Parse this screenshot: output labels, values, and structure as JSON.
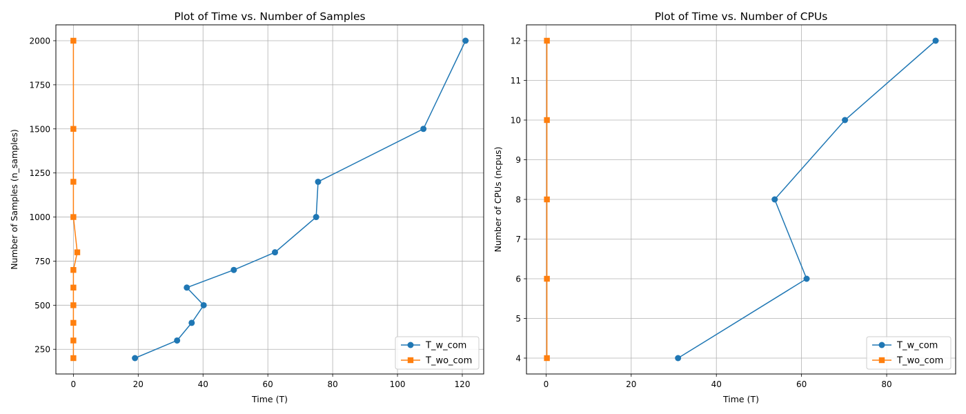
{
  "chart_data": [
    {
      "type": "line",
      "title": "Plot of Time vs. Number of Samples",
      "xlabel": "Time (T)",
      "ylabel": "Number of Samples (n_samples)",
      "xlim": [
        -5.4,
        126.6
      ],
      "ylim": [
        110,
        2090
      ],
      "xticks": [
        0,
        20,
        40,
        60,
        80,
        100,
        120
      ],
      "yticks": [
        250,
        500,
        750,
        1000,
        1250,
        1500,
        1750,
        2000
      ],
      "grid": true,
      "legend_position": "lower-right",
      "series": [
        {
          "name": "T_w_com",
          "color": "#1f77b4",
          "marker": "circle",
          "points": [
            [
              19,
              200
            ],
            [
              32,
              300
            ],
            [
              36.5,
              400
            ],
            [
              40.2,
              500
            ],
            [
              35,
              600
            ],
            [
              49.5,
              700
            ],
            [
              62.2,
              800
            ],
            [
              74.9,
              1000
            ],
            [
              75.5,
              1200
            ],
            [
              108,
              1500
            ],
            [
              121,
              2000
            ]
          ]
        },
        {
          "name": "T_wo_com",
          "color": "#ff7f0e",
          "marker": "square",
          "points": [
            [
              0,
              200
            ],
            [
              0,
              300
            ],
            [
              0,
              400
            ],
            [
              0,
              500
            ],
            [
              0,
              600
            ],
            [
              0,
              700
            ],
            [
              1.2,
              800
            ],
            [
              0,
              1000
            ],
            [
              0,
              1200
            ],
            [
              0,
              1500
            ],
            [
              0,
              2000
            ]
          ]
        }
      ]
    },
    {
      "type": "line",
      "title": "Plot of Time vs. Number of CPUs",
      "xlabel": "Time (T)",
      "ylabel": "Number of CPUs (ncpus)",
      "xlim": [
        -4.6,
        96.2
      ],
      "ylim": [
        3.6,
        12.4
      ],
      "xticks": [
        0,
        20,
        40,
        60,
        80
      ],
      "yticks": [
        4,
        5,
        6,
        7,
        8,
        9,
        10,
        11,
        12
      ],
      "grid": true,
      "legend_position": "lower-right",
      "series": [
        {
          "name": "T_w_com",
          "color": "#1f77b4",
          "marker": "circle",
          "points": [
            [
              31,
              4
            ],
            [
              61.2,
              6
            ],
            [
              53.7,
              8
            ],
            [
              70.2,
              10
            ],
            [
              91.5,
              12
            ]
          ]
        },
        {
          "name": "T_wo_com",
          "color": "#ff7f0e",
          "marker": "square",
          "points": [
            [
              0.2,
              4
            ],
            [
              0.2,
              6
            ],
            [
              0.2,
              8
            ],
            [
              0.2,
              10
            ],
            [
              0.2,
              12
            ]
          ]
        }
      ]
    }
  ]
}
